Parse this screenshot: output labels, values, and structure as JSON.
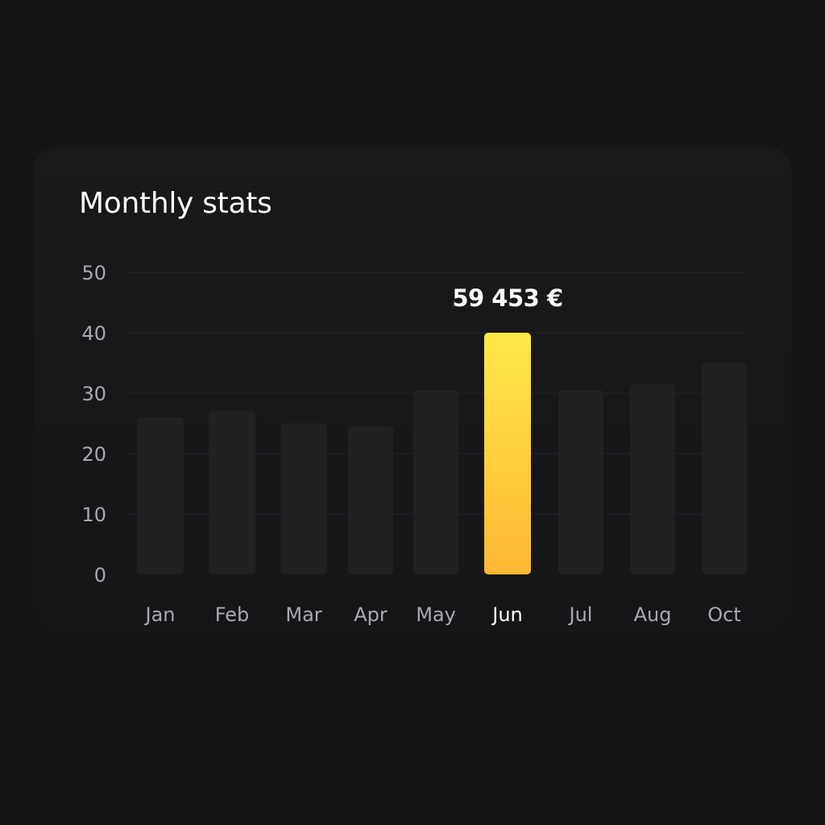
{
  "chart_data": {
    "type": "bar",
    "title": "Monthly stats",
    "categories": [
      "Jan",
      "Feb",
      "Mar",
      "Apr",
      "May",
      "Jun",
      "Jul",
      "Aug",
      "Oct"
    ],
    "values": [
      26,
      27,
      25,
      24.5,
      30.5,
      40,
      30.5,
      31.5,
      35
    ],
    "highlight_index": 5,
    "highlight_label": "59 453 €",
    "yticks": [
      "0",
      "10",
      "20",
      "30",
      "40",
      "50"
    ],
    "ylim": [
      0,
      50
    ],
    "grid": true,
    "xlabel": "",
    "ylabel": "",
    "colors": {
      "bar": "#1f2022",
      "highlight_top": "#ffe84a",
      "highlight_bottom": "#ffb733"
    }
  }
}
